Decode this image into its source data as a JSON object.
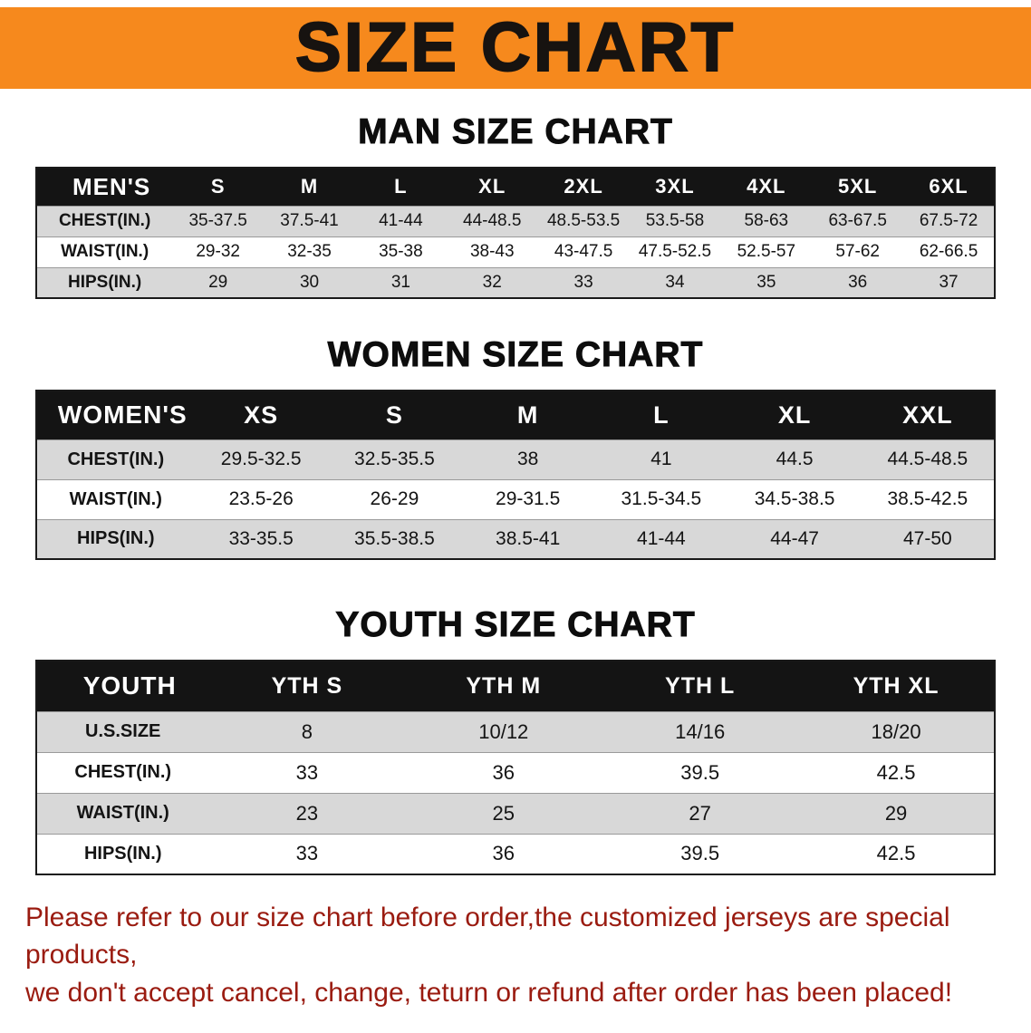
{
  "banner": {
    "title": "SIZE CHART"
  },
  "theme": {
    "banner_bg": "#f6891d",
    "table_header_bg": "#141414",
    "stripe": "#d8d8d8",
    "notice_color": "#9a1b10"
  },
  "sections": [
    {
      "title": "MAN SIZE CHART",
      "table": {
        "header": [
          "MEN'S",
          "S",
          "M",
          "L",
          "XL",
          "2XL",
          "3XL",
          "4XL",
          "5XL",
          "6XL"
        ],
        "rows": [
          [
            "CHEST(IN.)",
            "35-37.5",
            "37.5-41",
            "41-44",
            "44-48.5",
            "48.5-53.5",
            "53.5-58",
            "58-63",
            "63-67.5",
            "67.5-72"
          ],
          [
            "WAIST(IN.)",
            "29-32",
            "32-35",
            "35-38",
            "38-43",
            "43-47.5",
            "47.5-52.5",
            "52.5-57",
            "57-62",
            "62-66.5"
          ],
          [
            "HIPS(IN.)",
            "29",
            "30",
            "31",
            "32",
            "33",
            "34",
            "35",
            "36",
            "37"
          ]
        ]
      }
    },
    {
      "title": "WOMEN SIZE CHART",
      "table": {
        "header": [
          "WOMEN'S",
          "XS",
          "S",
          "M",
          "L",
          "XL",
          "XXL"
        ],
        "rows": [
          [
            "CHEST(IN.)",
            "29.5-32.5",
            "32.5-35.5",
            "38",
            "41",
            "44.5",
            "44.5-48.5"
          ],
          [
            "WAIST(IN.)",
            "23.5-26",
            "26-29",
            "29-31.5",
            "31.5-34.5",
            "34.5-38.5",
            "38.5-42.5"
          ],
          [
            "HIPS(IN.)",
            "33-35.5",
            "35.5-38.5",
            "38.5-41",
            "41-44",
            "44-47",
            "47-50"
          ]
        ]
      }
    },
    {
      "title": "YOUTH SIZE CHART",
      "table": {
        "header": [
          "YOUTH",
          "YTH S",
          "YTH M",
          "YTH L",
          "YTH XL"
        ],
        "rows": [
          [
            "U.S.SIZE",
            "8",
            "10/12",
            "14/16",
            "18/20"
          ],
          [
            "CHEST(IN.)",
            "33",
            "36",
            "39.5",
            "42.5"
          ],
          [
            "WAIST(IN.)",
            "23",
            "25",
            "27",
            "29"
          ],
          [
            "HIPS(IN.)",
            "33",
            "36",
            "39.5",
            "42.5"
          ]
        ]
      }
    }
  ],
  "footer": {
    "line1": "Please refer to our size chart before order,the customized jerseys are special products,",
    "line2": "we don't accept cancel, change, teturn or refund after order has been placed!"
  }
}
